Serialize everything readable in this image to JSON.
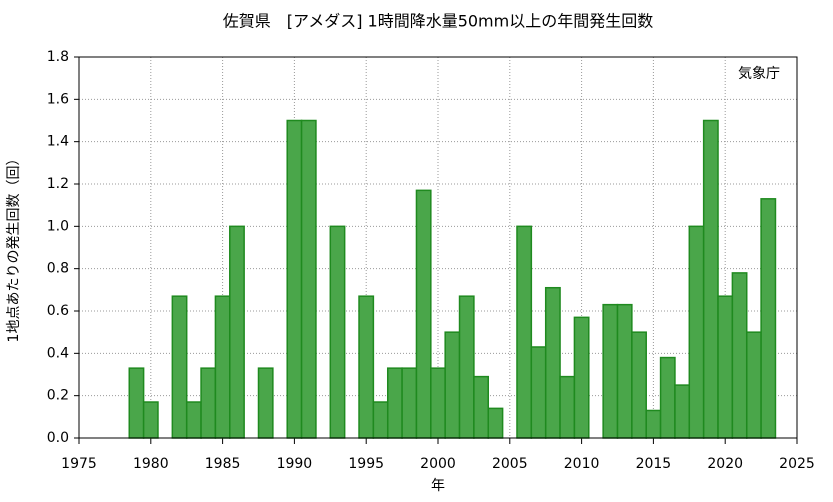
{
  "chart_data": {
    "type": "bar",
    "title": "佐賀県　[アメダス] 1時間降水量50mm以上の年間発生回数",
    "annotation": "気象庁",
    "x_label": "年",
    "y_label": "1地点あたりの発生回数（回）",
    "x": [
      1979,
      1980,
      1981,
      1982,
      1983,
      1984,
      1985,
      1986,
      1987,
      1988,
      1989,
      1990,
      1991,
      1992,
      1993,
      1994,
      1995,
      1996,
      1997,
      1998,
      1999,
      2000,
      2001,
      2002,
      2003,
      2004,
      2005,
      2006,
      2007,
      2008,
      2009,
      2010,
      2011,
      2012,
      2013,
      2014,
      2015,
      2016,
      2017,
      2018,
      2019,
      2020,
      2021,
      2022,
      2023
    ],
    "values": [
      0.33,
      0.17,
      0,
      0.67,
      0.17,
      0.33,
      0.67,
      1.0,
      0,
      0.33,
      0,
      1.5,
      1.5,
      0,
      1.0,
      0,
      0.67,
      0.17,
      0.33,
      0.33,
      1.17,
      0.33,
      0.5,
      0.67,
      0.29,
      0.14,
      0,
      1.0,
      0.43,
      0.71,
      0.29,
      0.57,
      0,
      0.63,
      0.63,
      0.5,
      0.13,
      0.38,
      0.25,
      1.0,
      1.5,
      0.67,
      0.78,
      0.5,
      1.13
    ],
    "color": "#4aa64a",
    "edge_color": "#1f8a1f",
    "xlim": [
      1975,
      2025
    ],
    "xticks": [
      1975,
      1980,
      1985,
      1990,
      1995,
      2000,
      2005,
      2010,
      2015,
      2020,
      2025
    ],
    "ylim": [
      0,
      1.8
    ],
    "yticks": [
      {
        "value": 0,
        "label": "0.0"
      },
      0.2,
      0.4,
      0.6,
      0.8,
      {
        "value": 1,
        "label": "1.0"
      },
      1.2,
      1.4,
      1.6,
      1.8
    ],
    "grid": true
  }
}
